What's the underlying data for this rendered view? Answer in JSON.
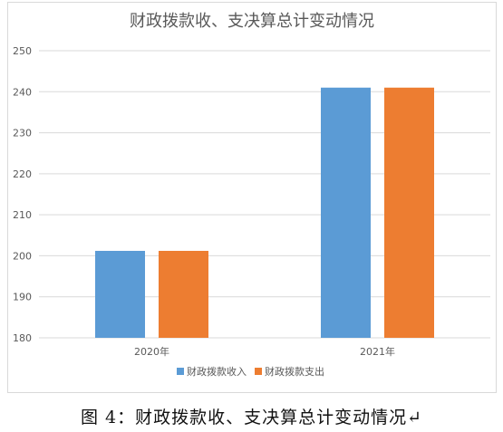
{
  "caption": "图 4：财政拨款收、支决算总计变动情况↵",
  "chart_data": {
    "type": "bar",
    "title": "财政拨款收、支决算总计变动情况",
    "categories": [
      "2020年",
      "2021年"
    ],
    "series": [
      {
        "name": "财政拨款收入",
        "color": "#5b9bd5",
        "values": [
          201.2,
          241.0
        ]
      },
      {
        "name": "财政拨款支出",
        "color": "#ed7d31",
        "values": [
          201.2,
          241.0
        ]
      }
    ],
    "ylim": [
      180,
      250
    ],
    "yticks": [
      180,
      190,
      200,
      210,
      220,
      230,
      240,
      250
    ],
    "grid": true,
    "legend_position": "bottom"
  }
}
